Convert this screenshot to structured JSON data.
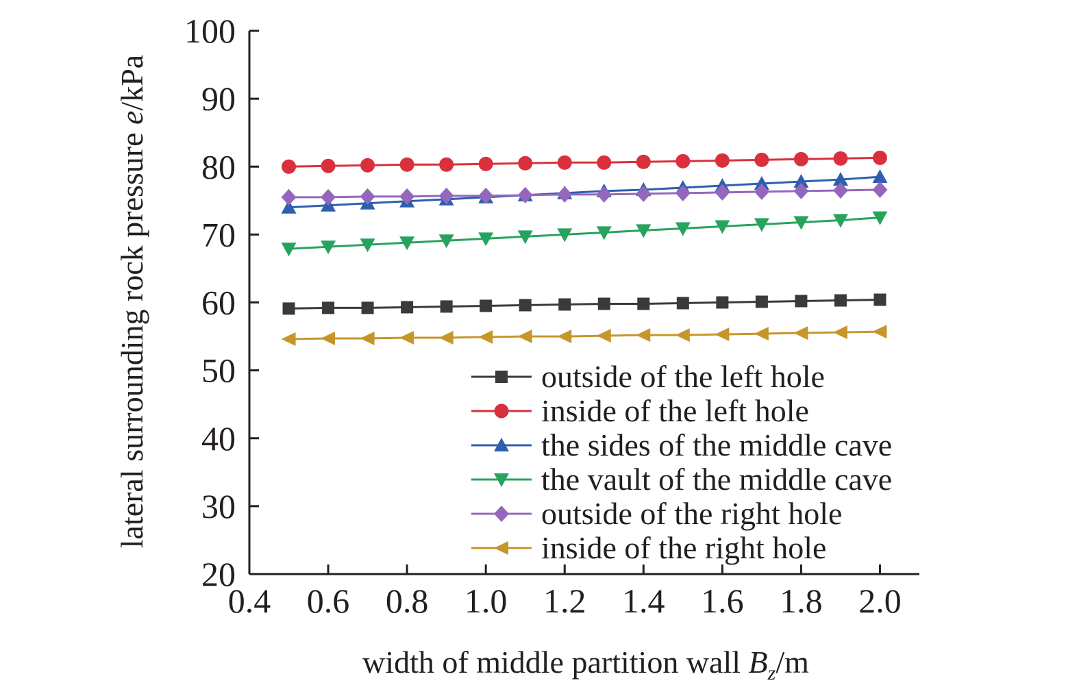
{
  "chart_data": {
    "type": "line",
    "xlabel_parts": {
      "pre": "width of middle partition wall ",
      "var": "B",
      "sub": "z",
      "post": "/m"
    },
    "ylabel_parts": {
      "pre": "lateral surrounding rock pressure ",
      "var": "e",
      "post": "/kPa"
    },
    "xlim": [
      0.4,
      2.1
    ],
    "ylim": [
      20,
      100
    ],
    "x_ticks": [
      "0.4",
      "0.6",
      "0.8",
      "1.0",
      "1.2",
      "1.4",
      "1.6",
      "1.8",
      "2.0"
    ],
    "y_ticks": [
      "20",
      "30",
      "40",
      "50",
      "60",
      "70",
      "80",
      "90",
      "100"
    ],
    "x": [
      0.5,
      0.6,
      0.7,
      0.8,
      0.9,
      1.0,
      1.1,
      1.2,
      1.3,
      1.4,
      1.5,
      1.6,
      1.7,
      1.8,
      1.9,
      2.0
    ],
    "legend_position": "lower-right",
    "grid": false,
    "series": [
      {
        "name": "outside of the left hole",
        "color": "#3a3a3c",
        "marker": "square",
        "values": [
          59.1,
          59.2,
          59.2,
          59.3,
          59.4,
          59.5,
          59.6,
          59.7,
          59.8,
          59.8,
          59.9,
          60.0,
          60.1,
          60.2,
          60.3,
          60.4
        ]
      },
      {
        "name": "inside of the left hole",
        "color": "#d9303c",
        "marker": "circle",
        "values": [
          80.0,
          80.1,
          80.2,
          80.3,
          80.3,
          80.4,
          80.5,
          80.6,
          80.6,
          80.7,
          80.8,
          80.9,
          81.0,
          81.1,
          81.2,
          81.3
        ]
      },
      {
        "name": "the sides of the middle cave",
        "color": "#2d5fae",
        "marker": "triangle-up",
        "values": [
          74.0,
          74.3,
          74.6,
          74.9,
          75.2,
          75.5,
          75.8,
          76.1,
          76.4,
          76.6,
          76.9,
          77.2,
          77.5,
          77.8,
          78.1,
          78.5
        ]
      },
      {
        "name": "the vault of the middle cave",
        "color": "#27a35e",
        "marker": "triangle-down",
        "values": [
          67.9,
          68.2,
          68.5,
          68.8,
          69.1,
          69.4,
          69.7,
          70.0,
          70.3,
          70.6,
          70.9,
          71.2,
          71.5,
          71.8,
          72.1,
          72.5
        ]
      },
      {
        "name": "outside of the right hole",
        "color": "#9467bd",
        "marker": "diamond",
        "values": [
          75.5,
          75.5,
          75.6,
          75.6,
          75.7,
          75.7,
          75.8,
          75.9,
          75.9,
          76.0,
          76.1,
          76.2,
          76.3,
          76.4,
          76.5,
          76.6
        ]
      },
      {
        "name": "inside of the right hole",
        "color": "#c7962a",
        "marker": "triangle-left",
        "values": [
          54.6,
          54.7,
          54.7,
          54.8,
          54.8,
          54.9,
          55.0,
          55.0,
          55.1,
          55.2,
          55.2,
          55.3,
          55.4,
          55.5,
          55.6,
          55.7
        ]
      }
    ]
  }
}
